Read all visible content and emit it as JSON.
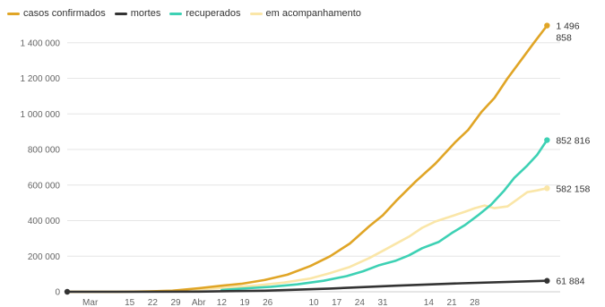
{
  "chart_data": {
    "type": "line",
    "title": "",
    "xlabel": "",
    "ylabel": "",
    "ylim": [
      0,
      1550000
    ],
    "y_ticks": [
      0,
      200000,
      400000,
      600000,
      800000,
      1000000,
      1200000,
      1400000
    ],
    "y_tick_labels": [
      "0",
      "200 000",
      "400 000",
      "600 000",
      "800 000",
      "1 000 000",
      "1 200 000",
      "1 400 000"
    ],
    "x_domain": [
      0,
      150
    ],
    "x_ticks": [
      {
        "x": 7,
        "label": "Mar"
      },
      {
        "x": 19,
        "label": "15"
      },
      {
        "x": 26,
        "label": "22"
      },
      {
        "x": 33,
        "label": "29"
      },
      {
        "x": 40,
        "label": "Abr"
      },
      {
        "x": 47,
        "label": "12"
      },
      {
        "x": 54,
        "label": "19"
      },
      {
        "x": 61,
        "label": "26"
      },
      {
        "x": 75,
        "label": "10"
      },
      {
        "x": 82,
        "label": "17"
      },
      {
        "x": 89,
        "label": "24"
      },
      {
        "x": 96,
        "label": "31"
      },
      {
        "x": 110,
        "label": "14"
      },
      {
        "x": 117,
        "label": "21"
      },
      {
        "x": 124,
        "label": "28"
      }
    ],
    "grid": true,
    "legend_position": "top-left",
    "series": [
      {
        "name": "casos confirmados",
        "color": "#e0a526",
        "end_label_1": "1 496",
        "end_label_2": "858",
        "points": [
          [
            0,
            2
          ],
          [
            15,
            200
          ],
          [
            25,
            2500
          ],
          [
            32,
            6000
          ],
          [
            40,
            20000
          ],
          [
            47,
            34000
          ],
          [
            53,
            45000
          ],
          [
            60,
            66000
          ],
          [
            67,
            96000
          ],
          [
            74,
            145000
          ],
          [
            80,
            200000
          ],
          [
            86,
            271000
          ],
          [
            92,
            370000
          ],
          [
            96,
            430000
          ],
          [
            100,
            510000
          ],
          [
            106,
            620000
          ],
          [
            112,
            720000
          ],
          [
            118,
            840000
          ],
          [
            122,
            910000
          ],
          [
            126,
            1010000
          ],
          [
            130,
            1090000
          ],
          [
            134,
            1200000
          ],
          [
            138,
            1300000
          ],
          [
            142,
            1400000
          ],
          [
            146,
            1496858
          ]
        ]
      },
      {
        "name": "mortes",
        "color": "#333333",
        "end_label_1": "61 884",
        "points": [
          [
            0,
            0
          ],
          [
            20,
            0
          ],
          [
            40,
            1000
          ],
          [
            60,
            6000
          ],
          [
            80,
            18000
          ],
          [
            100,
            34000
          ],
          [
            120,
            48000
          ],
          [
            146,
            61884
          ]
        ]
      },
      {
        "name": "recuperados",
        "color": "#3dd1b4",
        "end_label_1": "852 816",
        "points": [
          [
            47,
            10000
          ],
          [
            55,
            20000
          ],
          [
            62,
            28000
          ],
          [
            70,
            42000
          ],
          [
            78,
            62000
          ],
          [
            85,
            88000
          ],
          [
            90,
            115000
          ],
          [
            95,
            150000
          ],
          [
            100,
            175000
          ],
          [
            104,
            205000
          ],
          [
            108,
            245000
          ],
          [
            113,
            280000
          ],
          [
            117,
            330000
          ],
          [
            121,
            375000
          ],
          [
            125,
            430000
          ],
          [
            129,
            490000
          ],
          [
            133,
            570000
          ],
          [
            136,
            640000
          ],
          [
            140,
            710000
          ],
          [
            143,
            770000
          ],
          [
            146,
            852816
          ]
        ]
      },
      {
        "name": "em acompanhamento",
        "color": "#fae6a8",
        "end_label_1": "582 158",
        "points": [
          [
            0,
            2
          ],
          [
            20,
            200
          ],
          [
            32,
            6000
          ],
          [
            42,
            16000
          ],
          [
            50,
            24000
          ],
          [
            58,
            36000
          ],
          [
            66,
            52000
          ],
          [
            74,
            75000
          ],
          [
            80,
            105000
          ],
          [
            86,
            140000
          ],
          [
            92,
            190000
          ],
          [
            96,
            230000
          ],
          [
            100,
            270000
          ],
          [
            104,
            310000
          ],
          [
            108,
            360000
          ],
          [
            112,
            395000
          ],
          [
            117,
            425000
          ],
          [
            121,
            450000
          ],
          [
            124,
            470000
          ],
          [
            127,
            485000
          ],
          [
            130,
            470000
          ],
          [
            134,
            480000
          ],
          [
            137,
            520000
          ],
          [
            140,
            560000
          ],
          [
            143,
            570000
          ],
          [
            146,
            582158
          ]
        ]
      }
    ]
  }
}
